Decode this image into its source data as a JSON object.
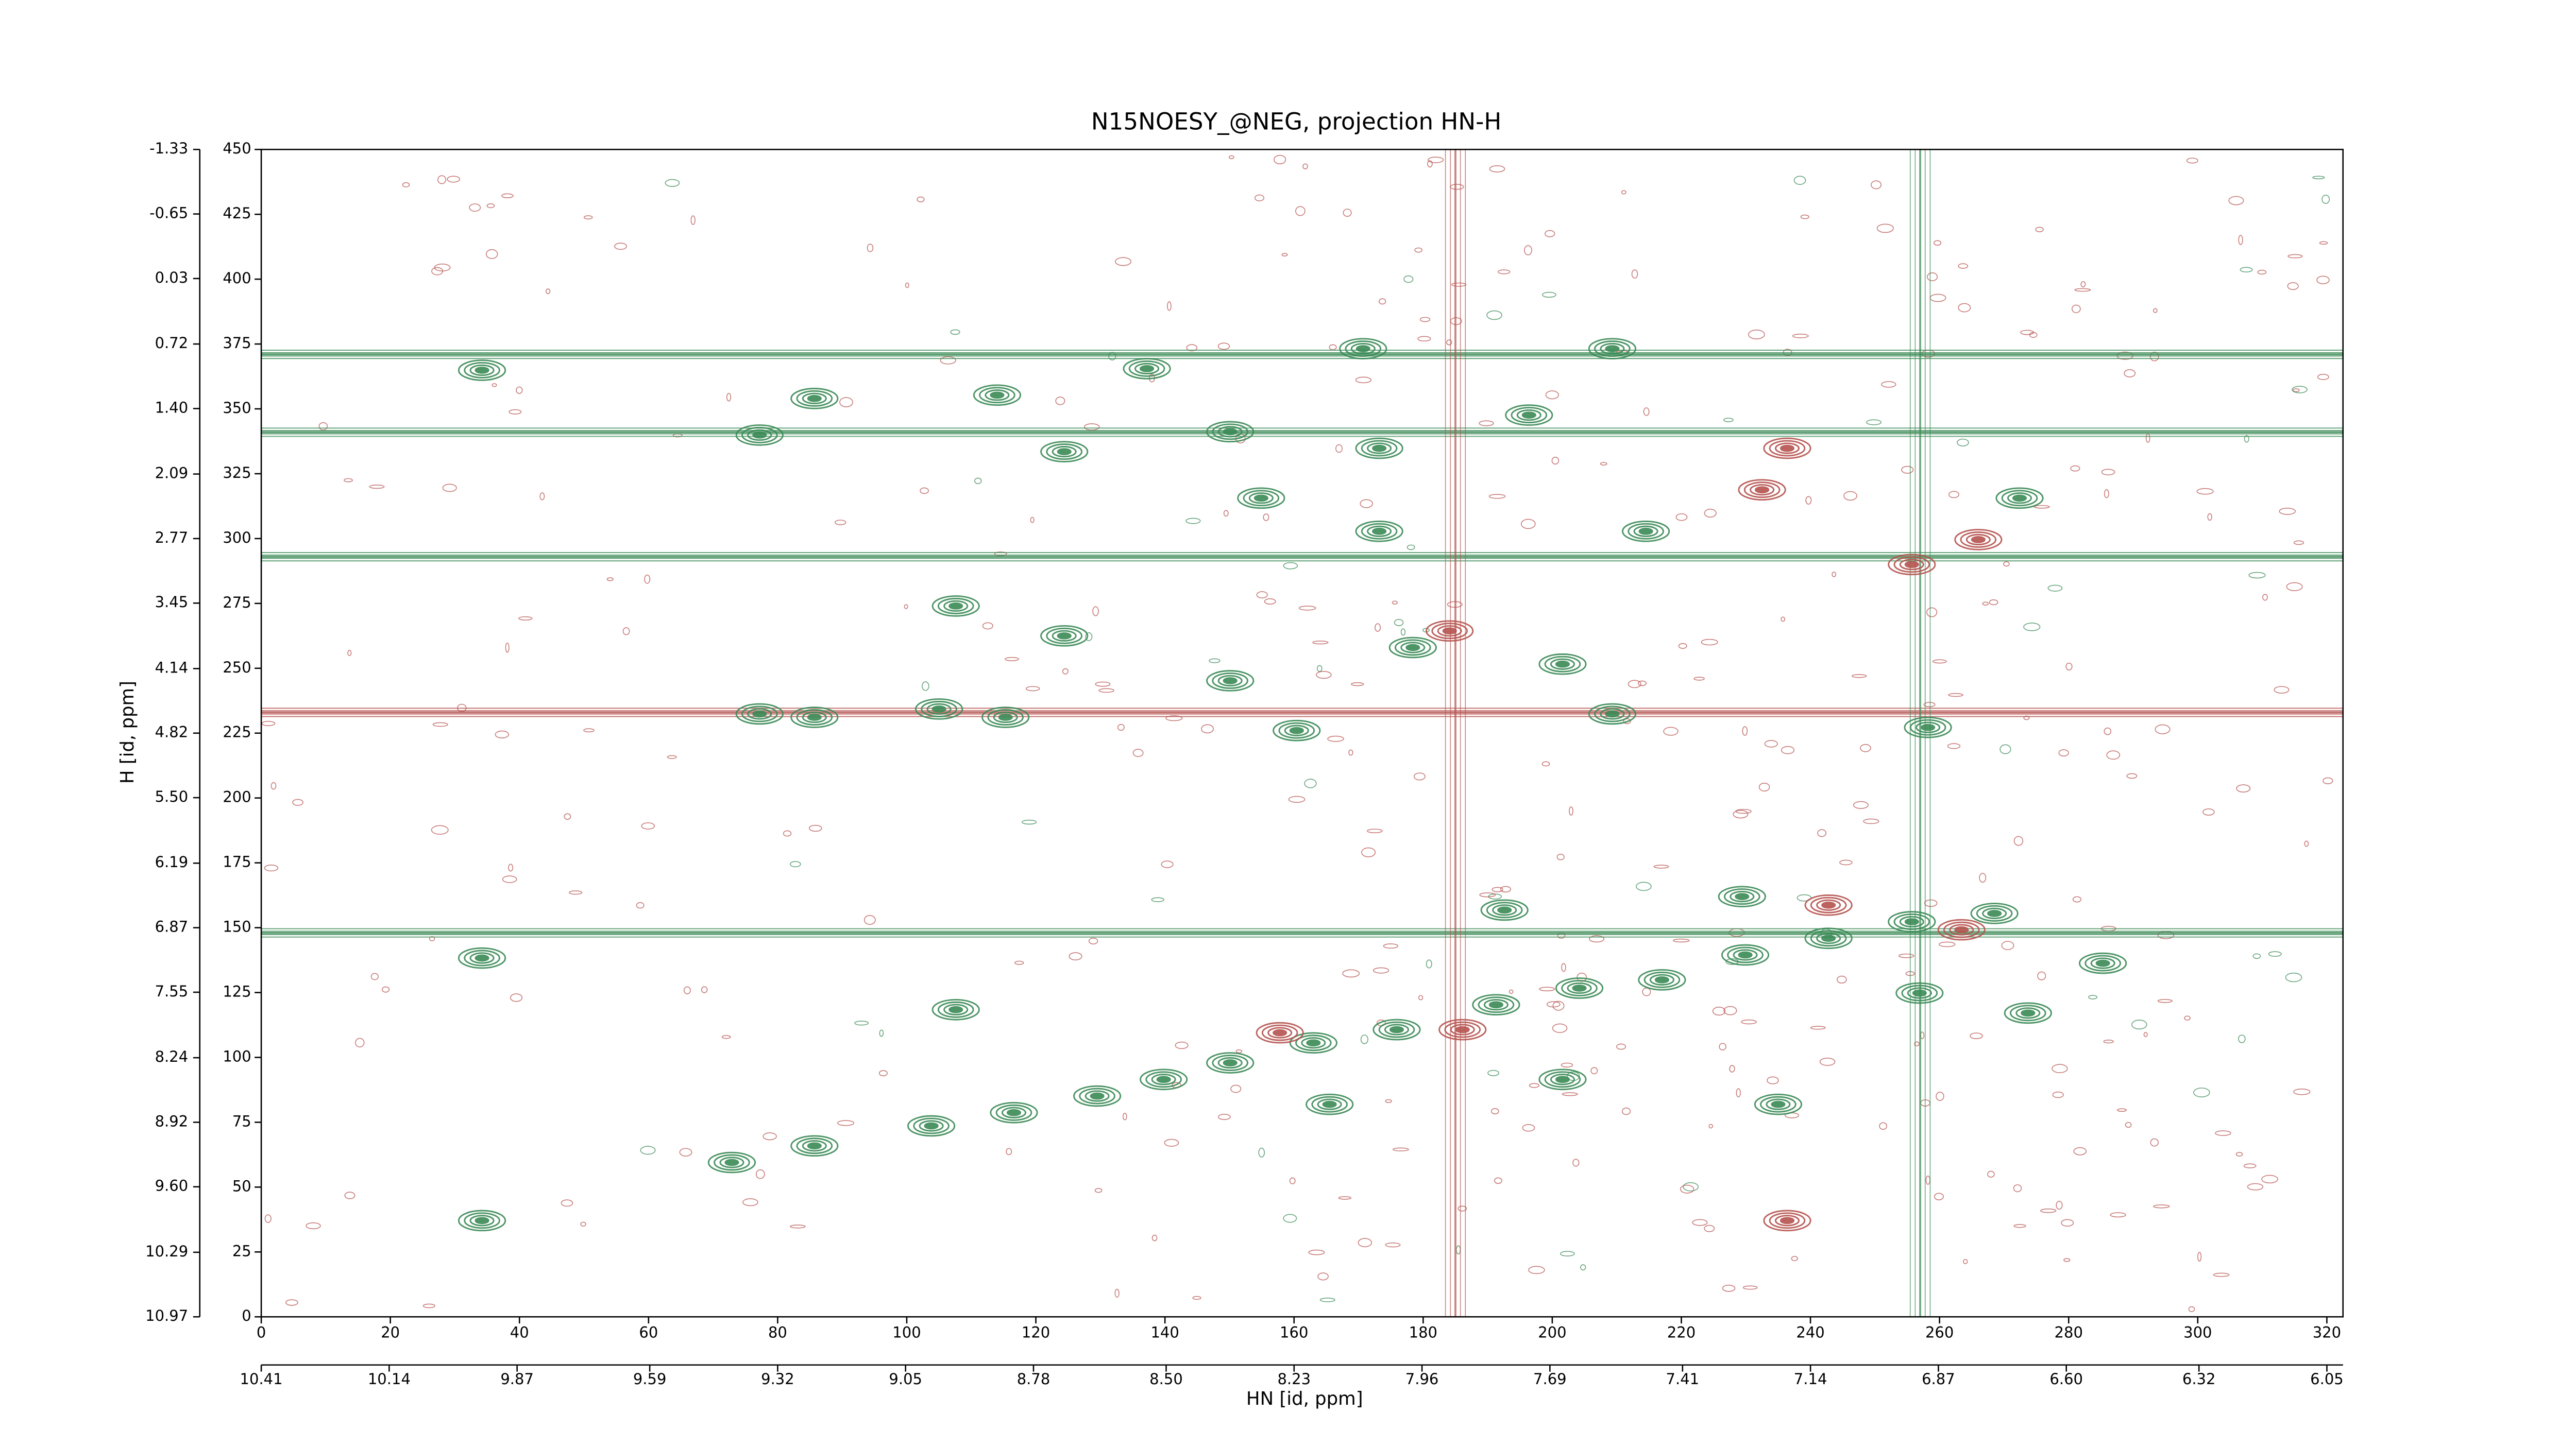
{
  "chart_data": {
    "type": "contour",
    "title": "N15NOESY_@NEG, projection HN-H",
    "x_label": "HN [id, ppm]",
    "y_label": "H [id, ppm]",
    "xlim": [
      0,
      322.5
    ],
    "xticks": [
      0,
      20,
      40,
      60,
      80,
      100,
      120,
      140,
      160,
      180,
      200,
      220,
      240,
      260,
      280,
      300,
      320
    ],
    "x2lim": [
      10.41,
      6.016
    ],
    "x2ticks": [
      10.41,
      10.14,
      9.87,
      9.59,
      9.32,
      9.05,
      8.78,
      {
        "value": 8.5,
        "label": "8.50"
      },
      8.23,
      7.96,
      7.69,
      7.41,
      7.14,
      6.87,
      {
        "value": 6.6,
        "label": "6.60"
      },
      6.32,
      6.05
    ],
    "ylim": [
      0,
      450
    ],
    "yticks": [
      0,
      25,
      50,
      75,
      100,
      125,
      150,
      175,
      200,
      225,
      250,
      275,
      300,
      325,
      350,
      375,
      400,
      425,
      450
    ],
    "y2lim": [
      10.97,
      -1.33
    ],
    "y2ticks": [
      10.97,
      10.29,
      {
        "value": 9.6,
        "label": "9.60"
      },
      8.92,
      8.24,
      7.55,
      6.87,
      6.19,
      {
        "value": 5.5,
        "label": "5.50"
      },
      4.82,
      4.14,
      3.45,
      2.77,
      2.09,
      {
        "value": 1.4,
        "label": "1.40"
      },
      0.72,
      0.03,
      -0.65,
      -1.33
    ],
    "positive_color": "#3a8a55",
    "negative_color": "#b5524e",
    "positive_peaks": {
      "x": [
        72.9,
        85.7,
        103.8,
        116.6,
        129.5,
        139.8,
        150.1,
        163.0,
        175.9,
        191.3,
        204.2,
        217.0,
        229.9,
        242.8,
        255.7,
        268.5,
        34.2,
        34.2,
        34.2,
        77.2,
        85.7,
        77.2,
        85.7,
        105.0,
        114.0,
        124.4,
        115.3,
        107.6,
        124.4,
        137.2,
        150.1,
        154.9,
        170.7,
        173.2,
        173.2,
        178.4,
        150.1,
        160.4,
        196.4,
        209.3,
        214.5,
        201.6,
        209.3,
        258.2,
        256.9,
        273.7,
        192.6,
        201.6,
        285.3,
        229.4,
        235.0,
        272.4,
        165.5,
        107.6
      ],
      "y": [
        59.5,
        65.9,
        73.6,
        78.7,
        85.1,
        91.5,
        97.9,
        105.6,
        110.7,
        120.3,
        126.7,
        129.9,
        139.5,
        145.9,
        152.3,
        155.5,
        364.9,
        138.3,
        37.1,
        339.9,
        354.0,
        232.4,
        231.1,
        234.3,
        355.3,
        333.5,
        231.1,
        274.0,
        262.5,
        365.5,
        341.2,
        315.6,
        373.2,
        334.8,
        302.8,
        258.0,
        245.2,
        226.0,
        347.6,
        373.2,
        302.8,
        251.6,
        232.4,
        227.2,
        124.8,
        117.1,
        156.8,
        91.5,
        136.3,
        162.0,
        81.9,
        315.6,
        81.9,
        118.4
      ]
    },
    "negative_peaks": {
      "x": [
        184.1,
        236.4,
        232.5,
        236.4,
        266.0,
        242.8,
        263.4,
        255.7,
        186.1,
        157.8
      ],
      "y": [
        264.4,
        334.8,
        318.8,
        37.1,
        299.6,
        158.7,
        149.2,
        290.0,
        110.7,
        109.5
      ]
    },
    "positive_ridges_h": [
      293,
      371,
      341,
      148
    ],
    "negative_ridges_h": [
      233
    ],
    "negative_ridges_v": [
      185
    ],
    "positive_ridges_v": [
      257
    ]
  }
}
